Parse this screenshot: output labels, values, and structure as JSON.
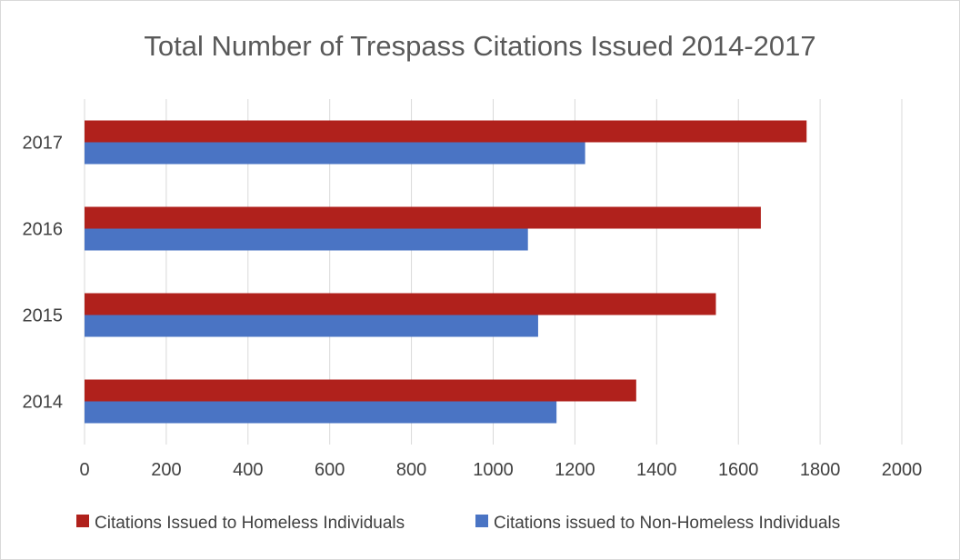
{
  "chart_data": {
    "type": "bar",
    "orientation": "horizontal",
    "title": "Total Number of Trespass Citations Issued 2014-2017",
    "categories": [
      "2014",
      "2015",
      "2016",
      "2017"
    ],
    "series": [
      {
        "name": "Citations Issued to Homeless Individuals",
        "color": "#b0211c",
        "values": [
          1350,
          1545,
          1655,
          1767
        ]
      },
      {
        "name": "Citations issued to Non-Homeless Individuals",
        "color": "#4a74c4",
        "values": [
          1155,
          1110,
          1085,
          1225
        ]
      }
    ],
    "xlim": [
      0,
      2000
    ],
    "x_ticks": [
      "0",
      "200",
      "400",
      "600",
      "800",
      "1000",
      "1200",
      "1400",
      "1600",
      "1800",
      "2000"
    ],
    "gridlines": true,
    "legend_position": "bottom"
  }
}
